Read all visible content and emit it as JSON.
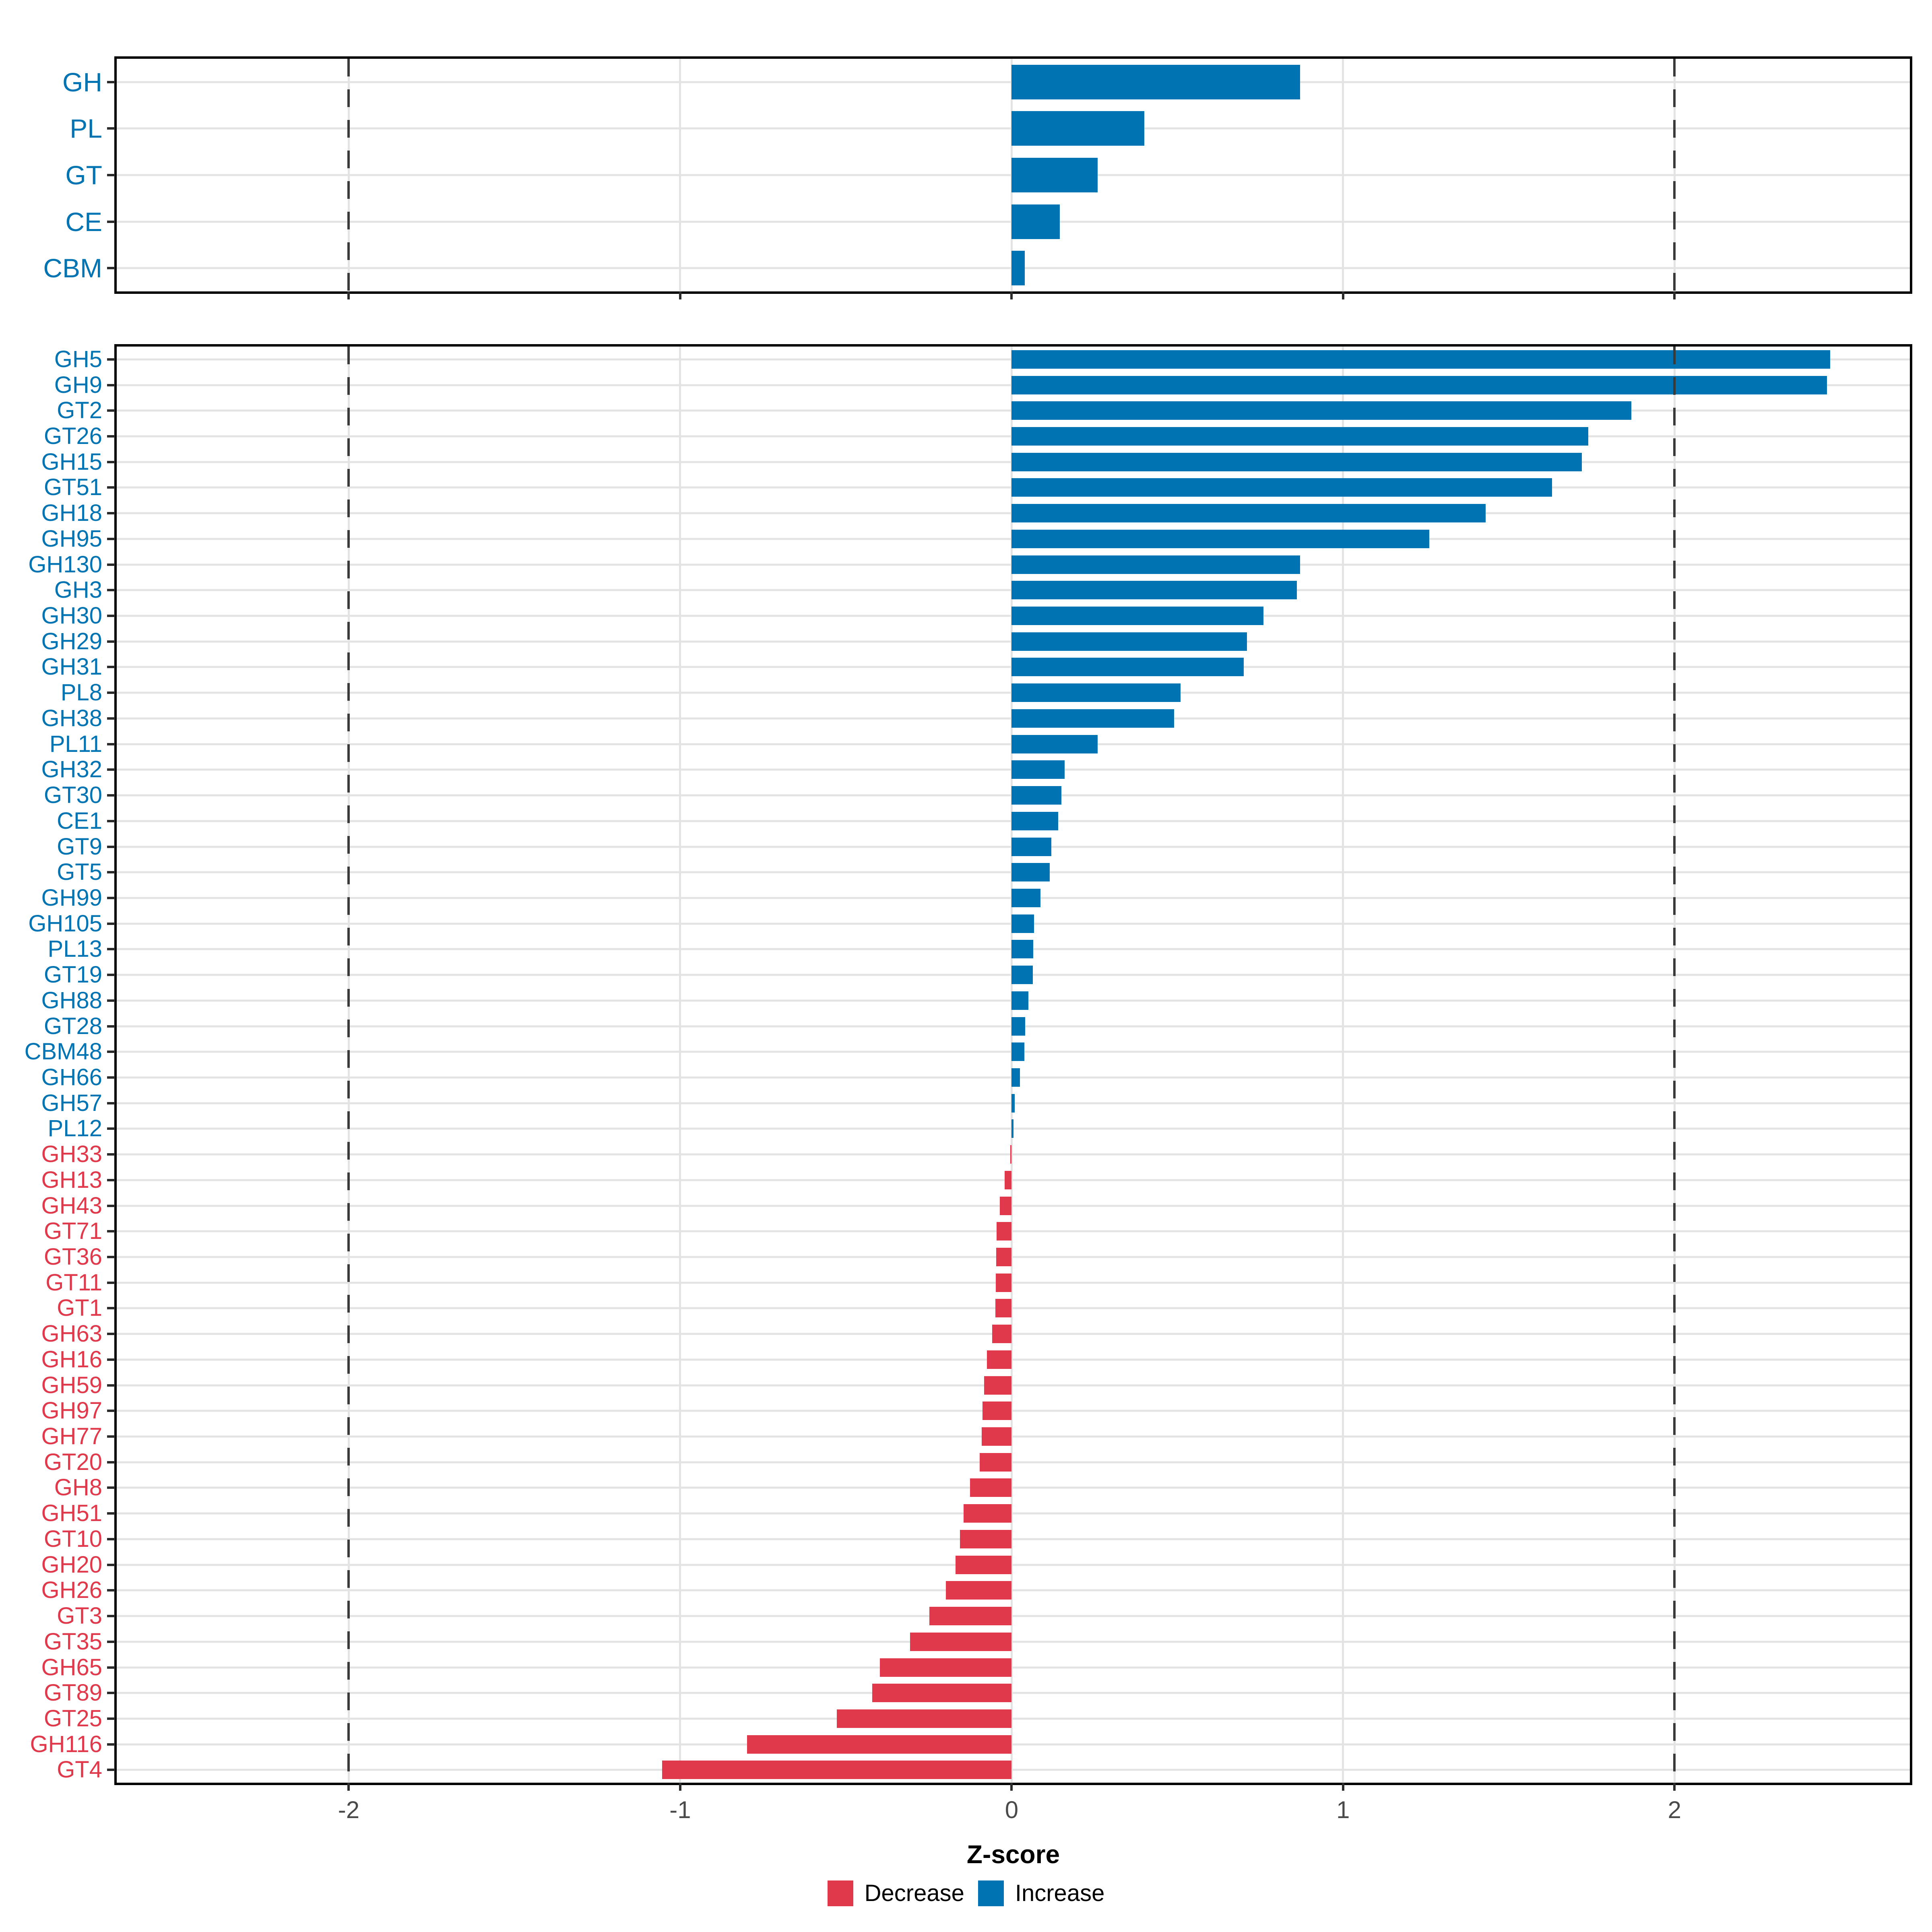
{
  "chart_data": {
    "type": "bar",
    "orientation": "horizontal",
    "title": "",
    "xlabel": "Z-score",
    "ylabel": "",
    "xlim": [
      -2.7,
      2.71
    ],
    "x_ticks": [
      -2,
      -1,
      0,
      1,
      2
    ],
    "x_tick_labels": [
      "-2",
      "-1",
      "0",
      "1",
      "2"
    ],
    "dashed_guides": [
      -2,
      2
    ],
    "grid": "on",
    "legend_position": "bottom",
    "colors": {
      "increase": "#0074B3",
      "decrease": "#E0394B"
    },
    "top_panel": {
      "categories": [
        "GH",
        "PL",
        "GT",
        "CE",
        "CBM"
      ],
      "values": [
        0.87,
        0.4,
        0.26,
        0.145,
        0.04
      ]
    },
    "bottom_panel": {
      "categories": [
        "GH5",
        "GH9",
        "GT2",
        "GT26",
        "GH15",
        "GT51",
        "GH18",
        "GH95",
        "GH130",
        "GH3",
        "GH30",
        "GH29",
        "GH31",
        "PL8",
        "GH38",
        "PL11",
        "GH32",
        "GT30",
        "CE1",
        "GT9",
        "GT5",
        "GH99",
        "GH105",
        "PL13",
        "GT19",
        "GH88",
        "GT28",
        "CBM48",
        "GH66",
        "GH57",
        "PL12",
        "GH33",
        "GH13",
        "GH43",
        "GT71",
        "GT36",
        "GT11",
        "GT1",
        "GH63",
        "GH16",
        "GH59",
        "GH97",
        "GH77",
        "GT20",
        "GH8",
        "GH51",
        "GT10",
        "GH20",
        "GH26",
        "GT3",
        "GT35",
        "GH65",
        "GT89",
        "GT25",
        "GH116",
        "GT4"
      ],
      "values": [
        2.47,
        2.46,
        1.87,
        1.74,
        1.72,
        1.63,
        1.43,
        1.26,
        0.87,
        0.86,
        0.76,
        0.71,
        0.7,
        0.51,
        0.49,
        0.26,
        0.16,
        0.15,
        0.14,
        0.12,
        0.115,
        0.087,
        0.068,
        0.065,
        0.064,
        0.051,
        0.041,
        0.039,
        0.025,
        0.009,
        0.006,
        -0.004,
        -0.021,
        -0.036,
        -0.046,
        -0.047,
        -0.048,
        -0.049,
        -0.059,
        -0.075,
        -0.083,
        -0.088,
        -0.09,
        -0.096,
        -0.125,
        -0.145,
        -0.156,
        -0.169,
        -0.198,
        -0.248,
        -0.307,
        -0.398,
        -0.421,
        -0.527,
        -0.798,
        -1.054
      ]
    }
  },
  "axis": {
    "title": "Z-score"
  },
  "legend": {
    "items": [
      {
        "label": "Decrease",
        "color": "#E0394B"
      },
      {
        "label": "Increase",
        "color": "#0074B3"
      }
    ]
  }
}
